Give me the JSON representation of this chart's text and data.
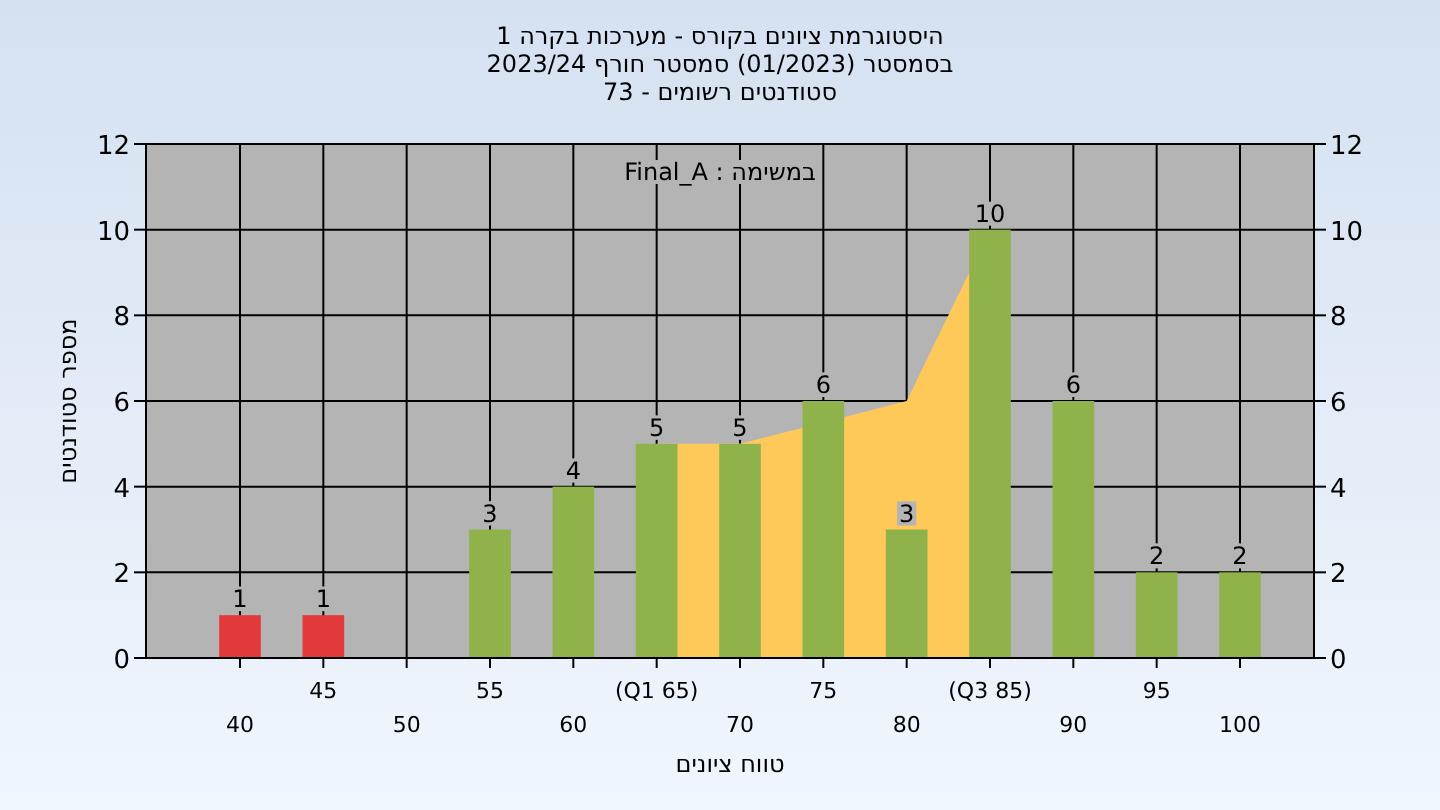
{
  "chart_data": {
    "type": "bar",
    "title": "היסטוגרמת ציונים בקורס - מערכות בקרה 1",
    "subtitle": "בסמסטר  (01/2023)  סמסטר חורף 2023/24\nסטודנטים רשומים - 73",
    "xlabel": "טווח ציונים",
    "ylabel": "מספר סטודנטים",
    "annotations": [
      "במשימה : Final_A"
    ],
    "categories": [
      "40",
      "45",
      "50",
      "55",
      "60",
      "(Q1 65)",
      "70",
      "75",
      "80",
      "(Q3 85)",
      "90",
      "95",
      "100"
    ],
    "series": [
      {
        "type": "area",
        "color": "#ffc95a",
        "values": [
          null,
          null,
          null,
          null,
          null,
          5,
          5,
          null,
          6,
          10,
          null,
          null,
          null
        ]
      },
      {
        "values": [
          1,
          1,
          0,
          3,
          4,
          5,
          5,
          6,
          3,
          10,
          6,
          2,
          2
        ],
        "colors": [
          "#e23a3a",
          "#e23a3a",
          "#8fb34a",
          "#8fb34a",
          "#8fb34a",
          "#8fb34a",
          "#8fb34a",
          "#8fb34a",
          "#8fb34a",
          "#8fb34a",
          "#8fb34a",
          "#8fb34a",
          "#8fb34a"
        ],
        "value_labels": [
          "1",
          "1",
          null,
          "3",
          "4",
          "5",
          "5",
          "6",
          "3",
          "10",
          "6",
          "2",
          "2"
        ]
      }
    ],
    "ylim": [
      0,
      12
    ],
    "yticks": [
      0,
      2,
      4,
      6,
      8,
      10,
      12
    ],
    "y2lim": [
      0,
      12
    ],
    "y2ticks": [
      0,
      2,
      4,
      6,
      8,
      10,
      12
    ],
    "grid": true
  }
}
